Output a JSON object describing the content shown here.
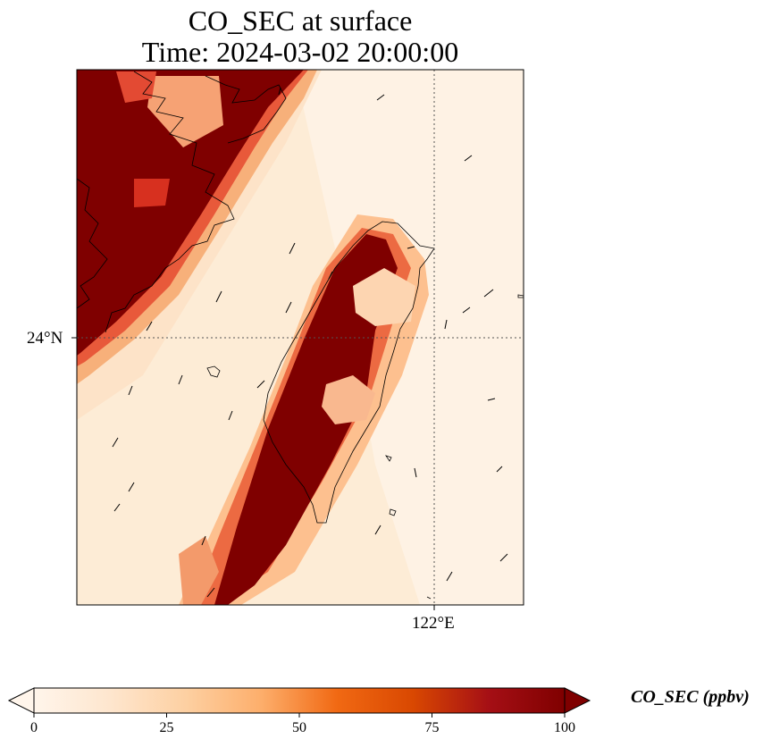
{
  "title_line1": "CO_SEC at surface",
  "title_line2": "Time: 2024-03-02 20:00:00",
  "map": {
    "lat_tick": "24°N",
    "lon_tick": "122°E",
    "colormap": [
      "#fff5eb",
      "#fee6ce",
      "#fdd0a2",
      "#fdae6b",
      "#f16913",
      "#d94801",
      "#a50f15",
      "#7f0000"
    ],
    "coastline_color": "#000000",
    "gridline_style": "dotted"
  },
  "colorbar": {
    "label": "CO_SEC (ppbv)",
    "min": 0,
    "max": 100,
    "ticks": [
      "0",
      "25",
      "50",
      "75",
      "100"
    ],
    "extend": "both"
  }
}
